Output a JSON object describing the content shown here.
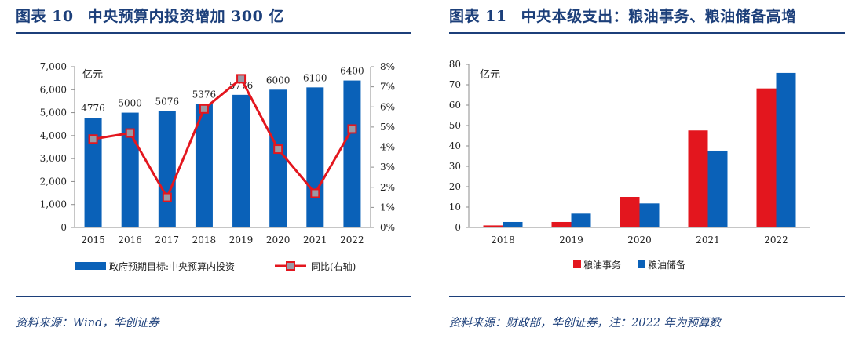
{
  "colors": {
    "title": "#1c3f7a",
    "blue_bar": "#0a61b8",
    "red": "#e3161e",
    "marker_fill": "#9a9aa6",
    "axis": "#8c8c8c"
  },
  "chart_left": {
    "fig_no": "图表 10",
    "title": "中央预算内投资增加 300 亿",
    "source": "资料来源：Wind，华创证券",
    "chart_data": {
      "type": "bar+line",
      "categories": [
        "2015",
        "2016",
        "2017",
        "2018",
        "2019",
        "2020",
        "2021",
        "2022"
      ],
      "series": [
        {
          "name": "政府预期目标:中央预算内投资",
          "axis": "left",
          "type": "bar",
          "values": [
            4776,
            5000,
            5076,
            5376,
            5776,
            6000,
            6100,
            6400
          ]
        },
        {
          "name": "同比(右轴)",
          "axis": "right",
          "type": "line",
          "values": [
            4.4,
            4.7,
            1.5,
            5.9,
            7.4,
            3.9,
            1.7,
            4.9
          ]
        }
      ],
      "data_labels": [
        "4776",
        "5000",
        "5076",
        "5376",
        "5776",
        "6000",
        "6100",
        "6400"
      ],
      "unit_label": "亿元",
      "ylim": [
        0,
        7000
      ],
      "yticks": [
        "0",
        "1,000",
        "2,000",
        "3,000",
        "4,000",
        "5,000",
        "6,000",
        "7,000"
      ],
      "y2lim": [
        0,
        8
      ],
      "y2ticks": [
        "0%",
        "1%",
        "2%",
        "3%",
        "4%",
        "5%",
        "6%",
        "7%",
        "8%"
      ],
      "legend": [
        "政府预期目标:中央预算内投资",
        "同比(右轴)"
      ],
      "legend_position": "bottom"
    }
  },
  "chart_right": {
    "fig_no": "图表 11",
    "title": "中央本级支出：粮油事务、粮油储备高增",
    "source": "资料来源：财政部，华创证券，注：2022 年为预算数",
    "chart_data": {
      "type": "bar",
      "categories": [
        "2018",
        "2019",
        "2020",
        "2021",
        "2022"
      ],
      "series": [
        {
          "name": "粮油事务",
          "color": "#e3161e",
          "values": [
            1,
            2.7,
            15,
            47.6,
            68.2
          ]
        },
        {
          "name": "粮油储备",
          "color": "#0a61b8",
          "values": [
            2.7,
            6.8,
            11.8,
            37.7,
            75.8
          ]
        }
      ],
      "unit_label": "亿元",
      "ylim": [
        0,
        80
      ],
      "yticks": [
        "0",
        "10",
        "20",
        "30",
        "40",
        "50",
        "60",
        "70",
        "80"
      ],
      "legend": [
        "粮油事务",
        "粮油储备"
      ],
      "legend_position": "bottom"
    }
  }
}
